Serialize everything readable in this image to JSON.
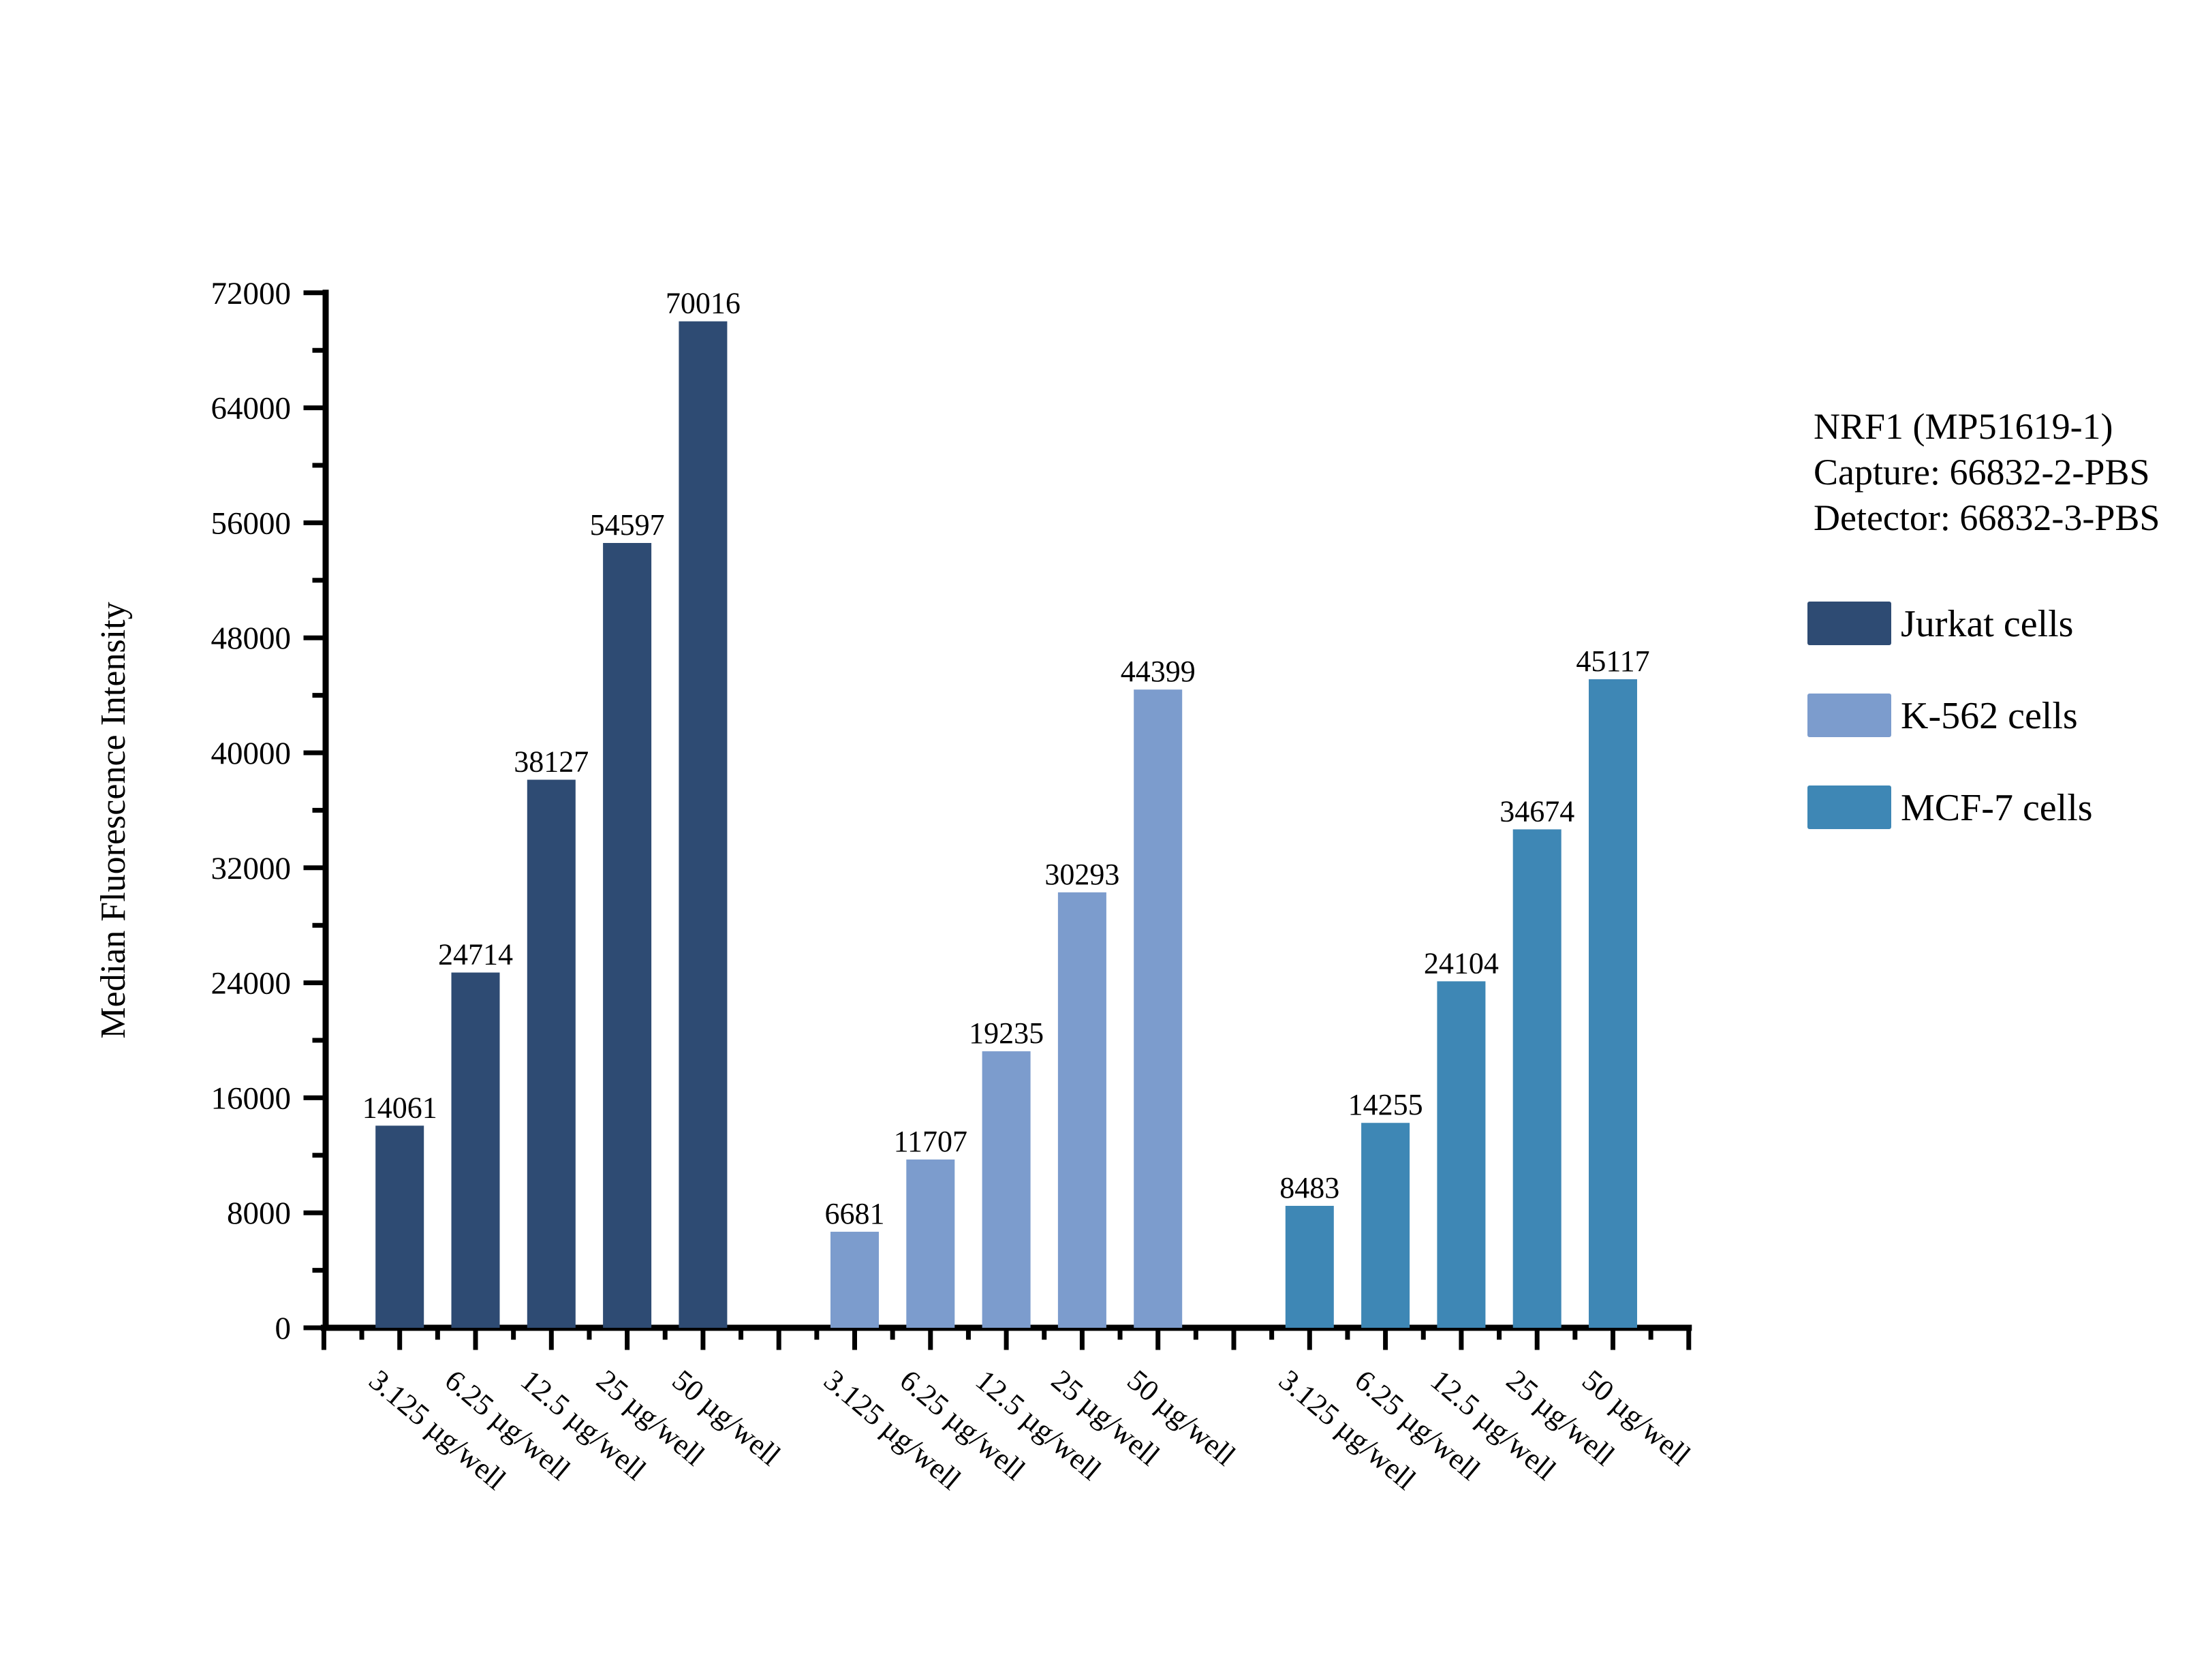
{
  "chart_data": {
    "type": "bar",
    "title": "",
    "xlabel": "",
    "ylabel": "Median Fluorescence Intensity",
    "ylim": [
      0,
      72000
    ],
    "y_major_step": 8000,
    "y_minor_step": 4000,
    "y_tick_labels": [
      "0",
      "8000",
      "16000",
      "24000",
      "32000",
      "40000",
      "48000",
      "56000",
      "64000",
      "72000"
    ],
    "grid": false,
    "legend_position": "right",
    "categories": [
      "3.125 µg/well",
      "6.25 µg/well",
      "12.5 µg/well",
      "25 µg/well",
      "50 µg/well"
    ],
    "series": [
      {
        "name": "Jurkat cells",
        "color": "#2E4B73",
        "values": [
          14061,
          24714,
          38127,
          54597,
          70016
        ]
      },
      {
        "name": "K-562 cells",
        "color": "#7C9CCD",
        "values": [
          6681,
          11707,
          19235,
          30293,
          44399
        ]
      },
      {
        "name": "MCF-7 cells",
        "color": "#3E87B5",
        "values": [
          8483,
          14255,
          24104,
          34674,
          45117
        ]
      }
    ],
    "bar_value_labels": [
      [
        "14061",
        "24714",
        "38127",
        "54597",
        "70016"
      ],
      [
        "6681",
        "11707",
        "19235",
        "30293",
        "44399"
      ],
      [
        "8483",
        "14255",
        "24104",
        "34674",
        "45117"
      ]
    ],
    "annotation_lines": [
      "NRF1 (MP51619-1)",
      "Capture: 66832-2-PBS",
      "Detector: 66832-3-PBS"
    ],
    "axis_color": "#000000",
    "text_color": "#000000",
    "background_color": "#ffffff"
  }
}
